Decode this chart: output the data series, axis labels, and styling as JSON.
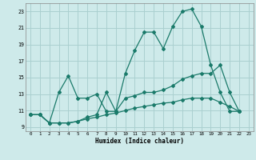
{
  "xlabel": "Humidex (Indice chaleur)",
  "bg_color": "#ceeaea",
  "grid_color": "#aad0d0",
  "line_color": "#1a7a6a",
  "xlim": [
    -0.5,
    23.5
  ],
  "ylim": [
    8.5,
    24.0
  ],
  "xticks": [
    0,
    1,
    2,
    3,
    4,
    5,
    6,
    7,
    8,
    9,
    10,
    11,
    12,
    13,
    14,
    15,
    16,
    17,
    18,
    19,
    20,
    21,
    22,
    23
  ],
  "yticks": [
    9,
    11,
    13,
    15,
    17,
    19,
    21,
    23
  ],
  "line1_x": [
    0,
    1,
    2,
    3,
    4,
    5,
    6,
    7,
    8,
    9,
    10,
    11,
    12,
    13,
    14,
    15,
    16,
    17,
    18,
    19,
    20,
    21,
    22
  ],
  "line1_y": [
    10.5,
    10.5,
    9.5,
    13.2,
    15.2,
    12.5,
    12.5,
    13.0,
    10.9,
    10.9,
    15.5,
    18.3,
    20.5,
    20.5,
    18.5,
    21.2,
    23.0,
    23.3,
    21.2,
    16.5,
    13.2,
    10.9,
    10.9
  ],
  "line2_x": [
    0,
    1,
    2,
    3,
    4,
    5,
    6,
    7,
    8,
    9,
    10,
    11,
    12,
    13,
    14,
    15,
    16,
    17,
    18,
    19,
    20,
    21,
    22
  ],
  "line2_y": [
    10.5,
    10.5,
    9.5,
    9.5,
    9.5,
    9.7,
    10.2,
    10.5,
    13.2,
    10.9,
    12.5,
    12.8,
    13.2,
    13.2,
    13.5,
    14.0,
    14.8,
    15.2,
    15.5,
    15.5,
    16.5,
    13.2,
    10.9
  ],
  "line3_x": [
    0,
    1,
    2,
    3,
    4,
    5,
    6,
    7,
    8,
    9,
    10,
    11,
    12,
    13,
    14,
    15,
    16,
    17,
    18,
    19,
    20,
    21,
    22
  ],
  "line3_y": [
    10.5,
    10.5,
    9.5,
    9.5,
    9.5,
    9.7,
    10.0,
    10.2,
    10.5,
    10.7,
    11.0,
    11.3,
    11.5,
    11.7,
    11.9,
    12.0,
    12.3,
    12.5,
    12.5,
    12.5,
    12.0,
    11.5,
    10.9
  ]
}
